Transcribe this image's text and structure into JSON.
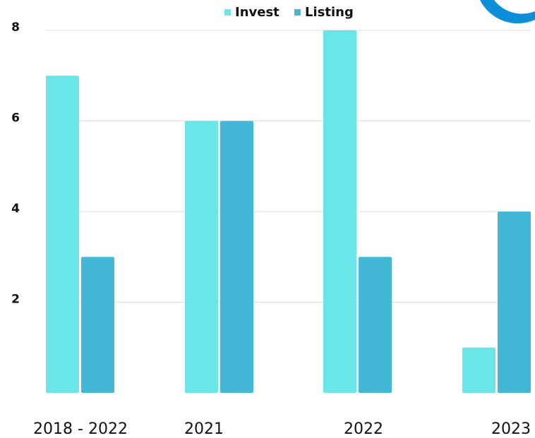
{
  "chart_data": {
    "type": "bar",
    "categories": [
      "2018 - 2022",
      "2021",
      "2022",
      "2023"
    ],
    "series": [
      {
        "name": "Invest",
        "color": "#6ae5e8",
        "values": [
          7,
          6,
          8,
          1
        ]
      },
      {
        "name": "Listing",
        "color": "#42b8d6",
        "values": [
          3,
          6,
          3,
          4
        ]
      }
    ],
    "ylim": [
      0,
      8
    ],
    "yticks": [
      2,
      4,
      6,
      8
    ],
    "grid": true,
    "legend": "top"
  }
}
